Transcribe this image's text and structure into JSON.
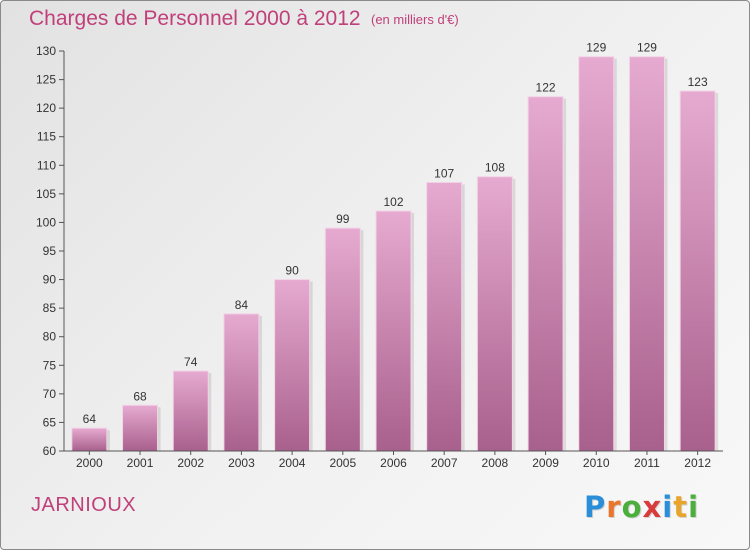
{
  "header": {
    "title": "Charges de Personnel 2000 à 2012",
    "subtitle": "(en milliers d'€)"
  },
  "footer": {
    "commune": "JARNIOUX",
    "brand": [
      "P",
      "r",
      "o",
      "x",
      "i",
      "t",
      "i"
    ],
    "brand_colors": [
      "#2a8fd8",
      "#e8762c",
      "#4cae3c",
      "#d93a3a",
      "#2a8fd8",
      "#e8a42c",
      "#4cae3c"
    ]
  },
  "colors": {
    "bar_top": "#e6aad0",
    "bar_bottom": "#a8608c",
    "accent": "#c0407a"
  },
  "chart_data": {
    "type": "bar",
    "title": "Charges de Personnel 2000 à 2012",
    "subtitle": "(en milliers d'€)",
    "categories": [
      "2000",
      "2001",
      "2002",
      "2003",
      "2004",
      "2005",
      "2006",
      "2007",
      "2008",
      "2009",
      "2010",
      "2011",
      "2012"
    ],
    "values": [
      64,
      68,
      74,
      84,
      90,
      99,
      102,
      107,
      108,
      122,
      129,
      129,
      123
    ],
    "ylim": [
      60,
      130
    ],
    "yticks": [
      60,
      65,
      70,
      75,
      80,
      85,
      90,
      95,
      100,
      105,
      110,
      115,
      120,
      125,
      130
    ],
    "grid": false,
    "xlabel": "",
    "ylabel": ""
  }
}
